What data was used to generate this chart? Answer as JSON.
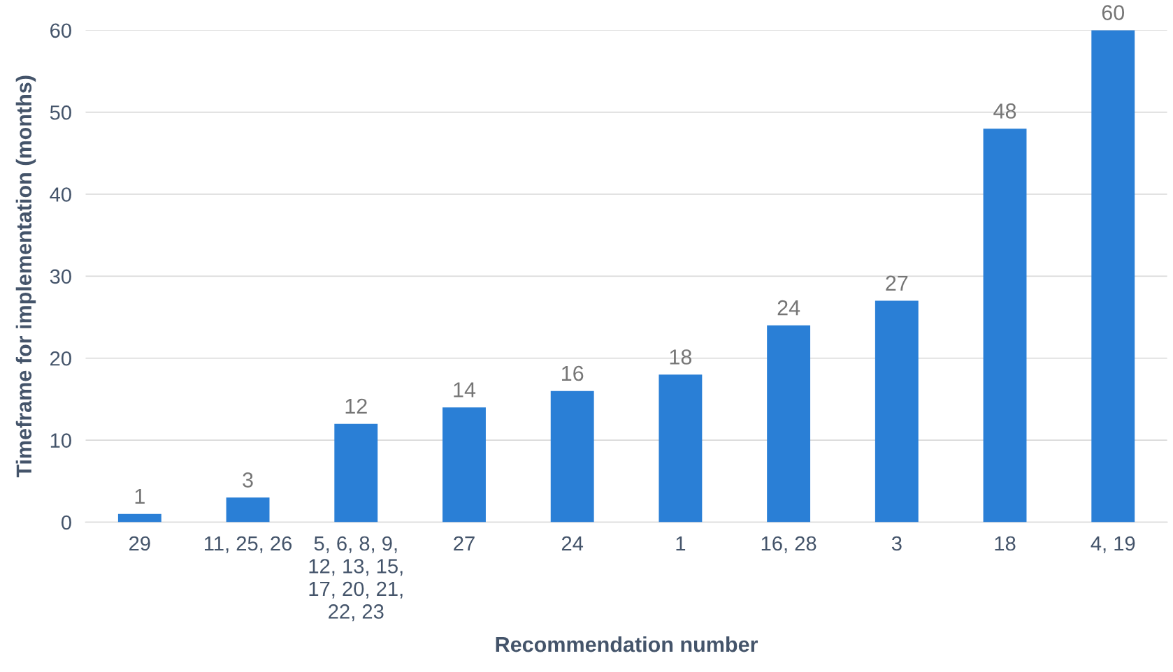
{
  "chart_data": {
    "type": "bar",
    "xlabel": "Recommendation number",
    "ylabel": "Timeframe for implementation (months)",
    "categories": [
      "29",
      "11, 25, 26",
      "5, 6, 8, 9,\n12, 13, 15,\n17, 20, 21,\n22, 23",
      "27",
      "24",
      "1",
      "16, 28",
      "3",
      "18",
      "4, 19"
    ],
    "values": [
      1,
      3,
      12,
      14,
      16,
      18,
      24,
      27,
      48,
      60
    ],
    "color": "#2a7fd6",
    "ylim": [
      0,
      60
    ],
    "yticks": [
      0,
      10,
      20,
      30,
      40,
      50,
      60
    ],
    "grid": "y",
    "data_labels": true
  }
}
